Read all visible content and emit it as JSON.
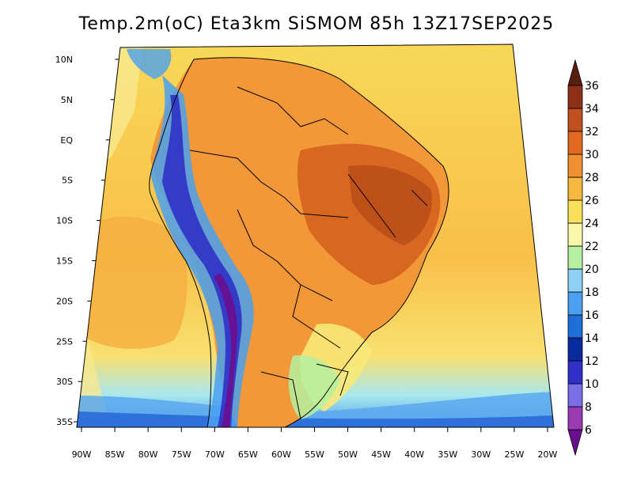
{
  "title": "Temp.2m(oC) Eta3km SiSMOM 85h 13Z17SEP2025",
  "map": {
    "variable": "2 m temperature",
    "units": "oC",
    "lat_ticks": [
      "10N",
      "5N",
      "EQ",
      "5S",
      "10S",
      "15S",
      "20S",
      "25S",
      "30S",
      "35S"
    ],
    "lon_ticks": [
      "90W",
      "85W",
      "80W",
      "75W",
      "70W",
      "65W",
      "60W",
      "55W",
      "50W",
      "45W",
      "40W",
      "35W",
      "30W",
      "25W",
      "20W"
    ]
  },
  "colorbar": {
    "labels": [
      "6",
      "8",
      "10",
      "12",
      "14",
      "16",
      "18",
      "20",
      "22",
      "24",
      "26",
      "28",
      "30",
      "32",
      "34",
      "36"
    ],
    "colors": [
      "#6a0f8e",
      "#9b3bb3",
      "#7a6fe8",
      "#3030c8",
      "#0a2aa0",
      "#1e6fd8",
      "#4aa0ee",
      "#8cd0f6",
      "#b4f0a0",
      "#f8f8a8",
      "#f8e058",
      "#f8b840",
      "#f09030",
      "#e06a20",
      "#c05020",
      "#8c3018",
      "#5a1e0e"
    ]
  }
}
